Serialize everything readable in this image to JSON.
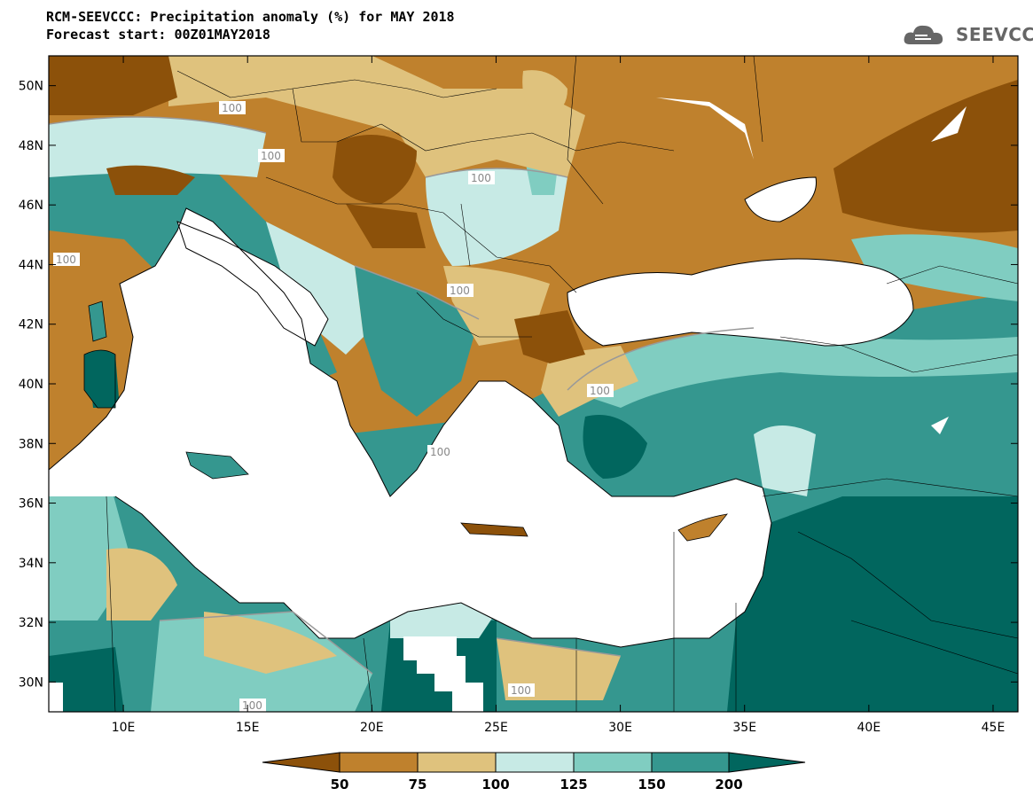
{
  "header": {
    "title": "RCM-SEEVCCC: Precipitation anomaly (%) for MAY 2018",
    "subtitle": "Forecast start: 00Z01MAY2018",
    "logo_text": "SEEVCCC"
  },
  "map": {
    "lon_range": [
      7,
      46
    ],
    "lat_range": [
      29,
      51
    ],
    "lat_ticks": [
      "50N",
      "48N",
      "46N",
      "44N",
      "42N",
      "40N",
      "38N",
      "36N",
      "34N",
      "32N",
      "30N"
    ],
    "lon_ticks": [
      "10E",
      "15E",
      "20E",
      "25E",
      "30E",
      "35E",
      "40E",
      "45E"
    ],
    "contour_labels": [
      "100",
      "100",
      "100",
      "100",
      "100",
      "100",
      "100",
      "100",
      "100"
    ]
  },
  "colorbar": {
    "labels": [
      "50",
      "75",
      "100",
      "125",
      "150",
      "200"
    ],
    "colors": {
      "below_50": "#8c510a",
      "50_75": "#bf812d",
      "75_100": "#dfc27d",
      "100_125": "#c7eae5",
      "125_150": "#80cdc1",
      "150_200": "#35978f",
      "above_200": "#01665e"
    }
  },
  "palette": {
    "dark_brown": "#8c510a",
    "brown": "#bf812d",
    "tan": "#dfc27d",
    "light_teal": "#c7eae5",
    "teal": "#80cdc1",
    "dark_teal": "#35978f",
    "deep_teal": "#01665e",
    "sea": "#ffffff"
  }
}
